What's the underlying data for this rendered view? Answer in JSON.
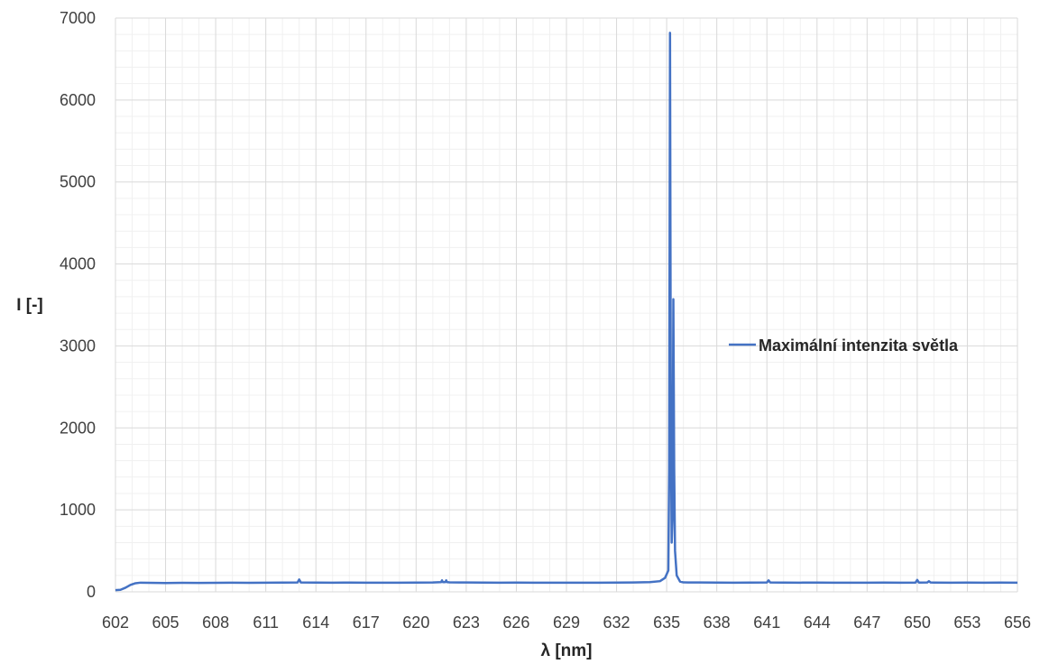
{
  "chart_data": {
    "type": "line",
    "title": "",
    "xlabel": "λ [nm]",
    "ylabel": "I [-]",
    "xlim": [
      602,
      656
    ],
    "ylim": [
      0,
      7000
    ],
    "x_ticks": [
      602,
      605,
      608,
      611,
      614,
      617,
      620,
      623,
      626,
      629,
      632,
      635,
      638,
      641,
      644,
      647,
      650,
      653,
      656
    ],
    "y_ticks": [
      0,
      1000,
      2000,
      3000,
      4000,
      5000,
      6000,
      7000
    ],
    "x_tick_labels": [
      "602",
      "605",
      "608",
      "611",
      "614",
      "617",
      "620",
      "623",
      "626",
      "629",
      "632",
      "635",
      "638",
      "641",
      "644",
      "647",
      "650",
      "653",
      "656"
    ],
    "y_tick_labels": [
      "0",
      "1000",
      "2000",
      "3000",
      "4000",
      "5000",
      "6000",
      "7000"
    ],
    "grid": true,
    "minor_grid": true,
    "legend": "right",
    "colors": {
      "series": "#4472c4",
      "major_grid": "#d9d9d9",
      "minor_grid": "#f0f0f0"
    },
    "series": [
      {
        "name": "Maximální intenzita světla",
        "points": [
          [
            602.0,
            20
          ],
          [
            602.3,
            25
          ],
          [
            602.6,
            50
          ],
          [
            602.9,
            85
          ],
          [
            603.2,
            105
          ],
          [
            603.5,
            112
          ],
          [
            604.0,
            110
          ],
          [
            605.0,
            108
          ],
          [
            606.0,
            110
          ],
          [
            607.0,
            109
          ],
          [
            608.0,
            110
          ],
          [
            609.0,
            111
          ],
          [
            610.0,
            110
          ],
          [
            611.0,
            112
          ],
          [
            612.0,
            113
          ],
          [
            612.9,
            114
          ],
          [
            613.0,
            150
          ],
          [
            613.1,
            114
          ],
          [
            614.0,
            113
          ],
          [
            615.0,
            112
          ],
          [
            616.0,
            113
          ],
          [
            617.0,
            112
          ],
          [
            618.0,
            111
          ],
          [
            619.0,
            112
          ],
          [
            620.0,
            113
          ],
          [
            621.0,
            114
          ],
          [
            621.5,
            118
          ],
          [
            621.55,
            140
          ],
          [
            621.6,
            118
          ],
          [
            621.75,
            118
          ],
          [
            621.8,
            140
          ],
          [
            621.85,
            118
          ],
          [
            622.0,
            115
          ],
          [
            623.0,
            114
          ],
          [
            624.0,
            113
          ],
          [
            625.0,
            112
          ],
          [
            626.0,
            113
          ],
          [
            627.0,
            112
          ],
          [
            628.0,
            111
          ],
          [
            629.0,
            112
          ],
          [
            630.0,
            111
          ],
          [
            631.0,
            112
          ],
          [
            632.0,
            113
          ],
          [
            633.0,
            114
          ],
          [
            634.0,
            118
          ],
          [
            634.6,
            130
          ],
          [
            634.9,
            170
          ],
          [
            635.1,
            260
          ],
          [
            635.15,
            1500
          ],
          [
            635.2,
            6820
          ],
          [
            635.25,
            2000
          ],
          [
            635.3,
            600
          ],
          [
            635.35,
            900
          ],
          [
            635.4,
            3570
          ],
          [
            635.45,
            1500
          ],
          [
            635.5,
            500
          ],
          [
            635.6,
            200
          ],
          [
            635.8,
            125
          ],
          [
            636.0,
            115
          ],
          [
            637.0,
            114
          ],
          [
            638.0,
            113
          ],
          [
            639.0,
            112
          ],
          [
            640.0,
            113
          ],
          [
            641.0,
            114
          ],
          [
            641.1,
            140
          ],
          [
            641.2,
            114
          ],
          [
            642.0,
            113
          ],
          [
            643.0,
            112
          ],
          [
            644.0,
            113
          ],
          [
            645.0,
            112
          ],
          [
            646.0,
            111
          ],
          [
            647.0,
            112
          ],
          [
            648.0,
            113
          ],
          [
            649.0,
            112
          ],
          [
            649.9,
            113
          ],
          [
            650.0,
            145
          ],
          [
            650.1,
            113
          ],
          [
            650.6,
            114
          ],
          [
            650.7,
            130
          ],
          [
            650.8,
            114
          ],
          [
            651.0,
            113
          ],
          [
            652.0,
            112
          ],
          [
            653.0,
            113
          ],
          [
            654.0,
            112
          ],
          [
            655.0,
            113
          ],
          [
            656.0,
            112
          ]
        ]
      }
    ]
  }
}
